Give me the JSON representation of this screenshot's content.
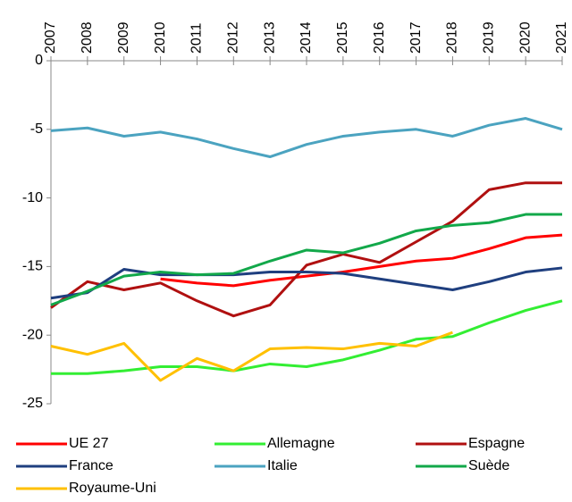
{
  "chart_data": {
    "type": "line",
    "x": [
      2007,
      2008,
      2009,
      2010,
      2011,
      2012,
      2013,
      2014,
      2015,
      2016,
      2017,
      2018,
      2019,
      2020,
      2021
    ],
    "xlim": [
      2007,
      2021
    ],
    "ylim": [
      -25,
      0
    ],
    "yticks": [
      0,
      -5,
      -10,
      -15,
      -20,
      -25
    ],
    "legend": "bottom",
    "series": [
      {
        "name": "UE 27",
        "color": "#ff0000",
        "values": [
          null,
          null,
          null,
          -15.9,
          -16.2,
          -16.4,
          -16.0,
          -15.7,
          -15.4,
          -15.0,
          -14.6,
          -14.4,
          -13.7,
          -12.9,
          -12.7
        ]
      },
      {
        "name": "Allemagne",
        "color": "#33ee33",
        "values": [
          -22.8,
          -22.8,
          -22.6,
          -22.3,
          -22.3,
          -22.6,
          -22.1,
          -22.3,
          -21.8,
          -21.1,
          -20.3,
          -20.1,
          -19.1,
          -18.2,
          -17.5
        ]
      },
      {
        "name": "Espagne",
        "color": "#b01010",
        "values": [
          -18.0,
          -16.1,
          -16.7,
          -16.2,
          -17.5,
          -18.6,
          -17.8,
          -14.9,
          -14.1,
          -14.7,
          -13.2,
          -11.7,
          -9.4,
          -8.9,
          -8.9
        ]
      },
      {
        "name": "France",
        "color": "#1f3f7f",
        "values": [
          -17.3,
          -16.9,
          -15.2,
          -15.6,
          -15.6,
          -15.6,
          -15.4,
          -15.4,
          -15.5,
          -15.9,
          -16.3,
          -16.7,
          -16.1,
          -15.4,
          -15.1
        ]
      },
      {
        "name": "Italie",
        "color": "#4ba3c0",
        "values": [
          -5.1,
          -4.9,
          -5.5,
          -5.2,
          -5.7,
          -6.4,
          -7.0,
          -6.1,
          -5.5,
          -5.2,
          -5.0,
          -5.5,
          -4.7,
          -4.2,
          -5.0
        ]
      },
      {
        "name": "Suède",
        "color": "#12a84a",
        "values": [
          -17.8,
          -16.8,
          -15.7,
          -15.4,
          -15.6,
          -15.5,
          -14.6,
          -13.8,
          -14.0,
          -13.3,
          -12.4,
          -12.0,
          -11.8,
          -11.2,
          -11.2
        ]
      },
      {
        "name": "Royaume-Uni",
        "color": "#ffc000",
        "values": [
          -20.8,
          -21.4,
          -20.6,
          -23.3,
          -21.7,
          -22.6,
          -21.0,
          -20.9,
          -21.0,
          -20.6,
          -20.8,
          -19.8,
          null,
          null,
          null
        ]
      }
    ]
  }
}
